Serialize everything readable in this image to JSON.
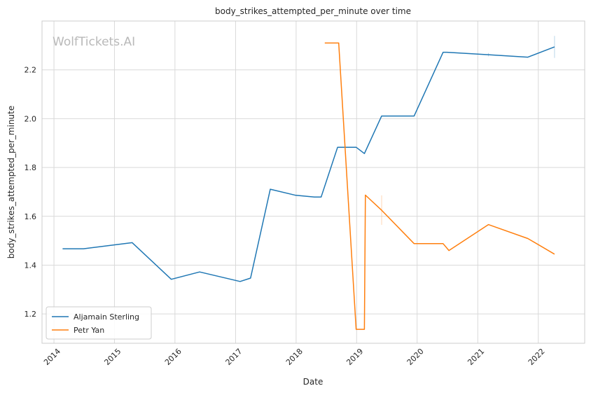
{
  "chart_data": {
    "type": "line",
    "title": "body_strikes_attempted_per_minute over time",
    "xlabel": "Date",
    "ylabel": "body_strikes_attempted_per_minute",
    "watermark": "WolfTickets.AI",
    "x_ticks": [
      "2014",
      "2015",
      "2016",
      "2017",
      "2018",
      "2019",
      "2020",
      "2021",
      "2022"
    ],
    "y_ticks": [
      "1.2",
      "1.4",
      "1.6",
      "1.8",
      "2.0",
      "2.2"
    ],
    "xlim": [
      "2013-10-21",
      "2022-10-08"
    ],
    "ylim": [
      1.08,
      2.4
    ],
    "grid": true,
    "legend_position": "lower-left",
    "series": [
      {
        "name": "Aljamain Sterling",
        "color": "#1f77b4",
        "points": [
          [
            "2014-02-22",
            1.467
          ],
          [
            "2014-06-28",
            1.467
          ],
          [
            "2015-04-18",
            1.492
          ],
          [
            "2015-12-10",
            1.342
          ],
          [
            "2016-05-29",
            1.372
          ],
          [
            "2017-01-28",
            1.333
          ],
          [
            "2017-04-01",
            1.347
          ],
          [
            "2017-07-29",
            1.711
          ],
          [
            "2017-12-30",
            1.686
          ],
          [
            "2018-04-21",
            1.679
          ],
          [
            "2018-06-01",
            1.679
          ],
          [
            "2018-09-08",
            1.883
          ],
          [
            "2018-12-29",
            1.883
          ],
          [
            "2019-02-17",
            1.857
          ],
          [
            "2019-06-01",
            2.011
          ],
          [
            "2019-12-14",
            2.011
          ],
          [
            "2020-06-06",
            2.272
          ],
          [
            "2020-06-28",
            2.272
          ],
          [
            "2021-03-06",
            2.262
          ],
          [
            "2021-10-30",
            2.252
          ],
          [
            "2022-04-09",
            2.294
          ]
        ]
      },
      {
        "name": "Petr Yan",
        "color": "#ff7f0e",
        "points": [
          [
            "2018-06-23",
            2.31
          ],
          [
            "2018-09-15",
            2.31
          ],
          [
            "2018-12-29",
            1.137
          ],
          [
            "2019-02-17",
            1.137
          ],
          [
            "2019-02-23",
            1.687
          ],
          [
            "2019-06-01",
            1.625
          ],
          [
            "2019-12-14",
            1.488
          ],
          [
            "2020-06-06",
            1.488
          ],
          [
            "2020-07-11",
            1.46
          ],
          [
            "2021-03-06",
            1.566
          ],
          [
            "2021-10-30",
            1.509
          ],
          [
            "2022-04-09",
            1.445
          ]
        ]
      }
    ],
    "error_bars": [
      {
        "series": "Aljamain Sterling",
        "x": "2021-03-06",
        "y_low": 2.255,
        "y_high": 2.269
      },
      {
        "series": "Aljamain Sterling",
        "x": "2022-04-09",
        "y_low": 2.249,
        "y_high": 2.339
      },
      {
        "series": "Petr Yan",
        "x": "2019-06-01",
        "y_low": 1.565,
        "y_high": 1.686
      }
    ]
  }
}
